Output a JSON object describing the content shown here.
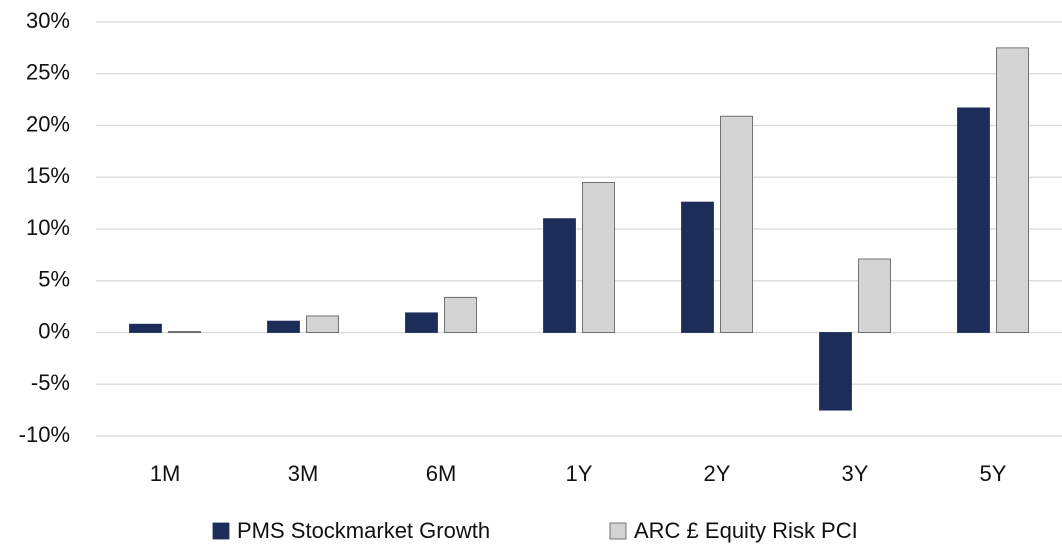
{
  "chart_data": {
    "type": "bar",
    "categories": [
      "1M",
      "3M",
      "6M",
      "1Y",
      "2Y",
      "3Y",
      "5Y"
    ],
    "series": [
      {
        "name": "PMS Stockmarket Growth",
        "color": "#1c2d5a",
        "values": [
          0.8,
          1.1,
          1.9,
          11.0,
          12.6,
          -7.5,
          21.7
        ]
      },
      {
        "name": "ARC £ Equity Risk PCI",
        "color": "#d4d4d4",
        "values": [
          0.1,
          1.6,
          3.4,
          14.5,
          20.9,
          7.1,
          27.5
        ]
      }
    ],
    "ylim": [
      -10,
      30
    ],
    "yticks": [
      {
        "value": -10,
        "label": "-10%"
      },
      {
        "value": -5,
        "label": "-5%"
      },
      {
        "value": 0,
        "label": "0%"
      },
      {
        "value": 5,
        "label": "5%"
      },
      {
        "value": 10,
        "label": "10%"
      },
      {
        "value": 15,
        "label": "15%"
      },
      {
        "value": 20,
        "label": "20%"
      },
      {
        "value": 25,
        "label": "25%"
      },
      {
        "value": 30,
        "label": "30%"
      }
    ],
    "grid": true,
    "legend": "bottom"
  }
}
